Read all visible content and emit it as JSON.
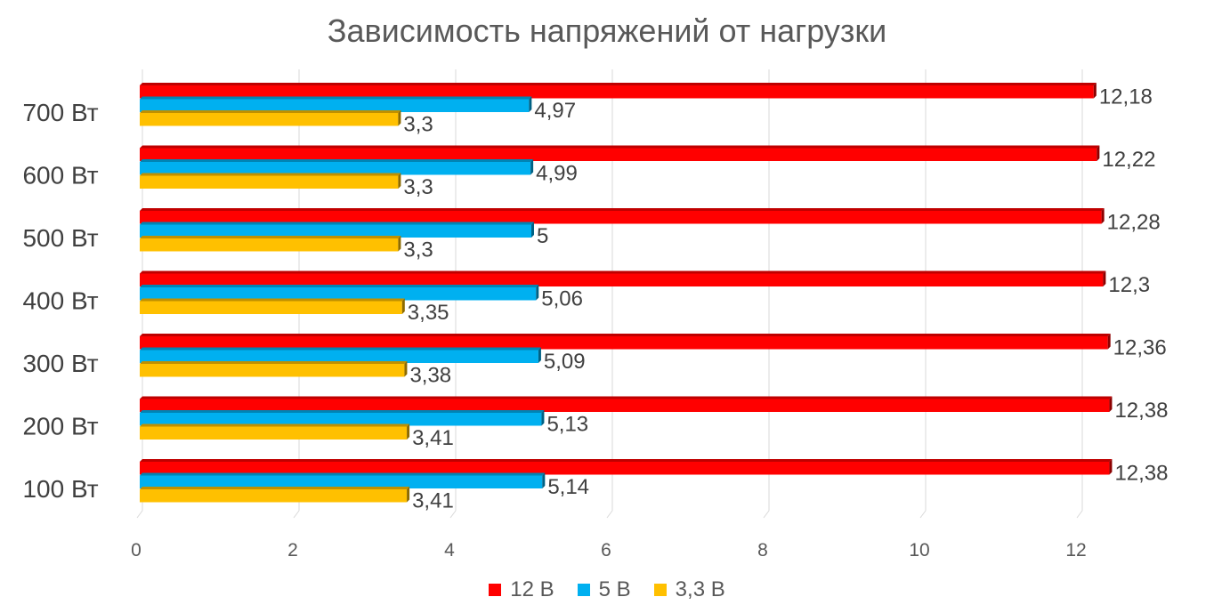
{
  "chart_data": {
    "type": "bar",
    "orientation": "horizontal",
    "style": "3d-bar",
    "title": "Зависимость напряжений от нагрузки",
    "categories": [
      "700 Вт",
      "600 Вт",
      "500 Вт",
      "400 Вт",
      "300 Вт",
      "200 Вт",
      "100 Вт"
    ],
    "series": [
      {
        "name": "12 В",
        "color": "#ff0000",
        "values": [
          12.18,
          12.22,
          12.28,
          12.3,
          12.36,
          12.38,
          12.38
        ],
        "labels": [
          "12,18",
          "12,22",
          "12,28",
          "12,3",
          "12,36",
          "12,38",
          "12,38"
        ]
      },
      {
        "name": "5 В",
        "color": "#00b0f0",
        "values": [
          4.97,
          4.99,
          5,
          5.06,
          5.09,
          5.13,
          5.14
        ],
        "labels": [
          "4,97",
          "4,99",
          "5",
          "5,06",
          "5,09",
          "5,13",
          "5,14"
        ]
      },
      {
        "name": "3,3 В",
        "color": "#ffc000",
        "values": [
          3.3,
          3.3,
          3.3,
          3.35,
          3.38,
          3.41,
          3.41
        ],
        "labels": [
          "3,3",
          "3,3",
          "3,3",
          "3,35",
          "3,38",
          "3,41",
          "3,41"
        ]
      }
    ],
    "x_ticks": [
      "0",
      "2",
      "4",
      "6",
      "8",
      "10",
      "12"
    ],
    "xlim": [
      0,
      12.5
    ],
    "grid": true,
    "legend_position": "bottom"
  }
}
